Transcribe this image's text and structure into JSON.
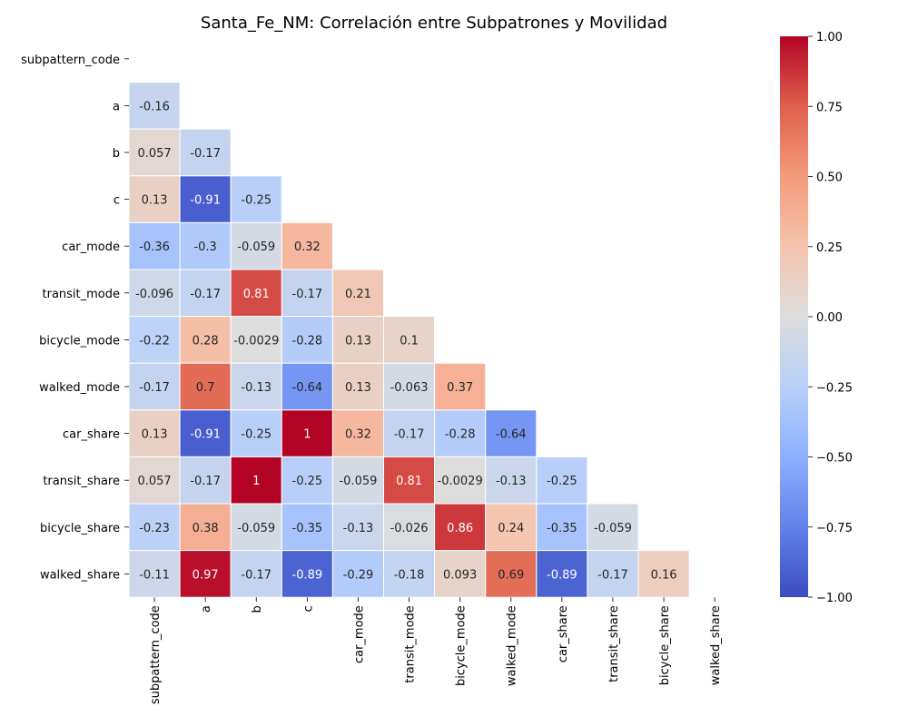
{
  "chart_data": {
    "type": "heatmap",
    "title": "Santa_Fe_NM: Correlación entre Subpatrones y Movilidad",
    "xlabel": "",
    "ylabel": "",
    "rows": [
      "subpattern_code",
      "a",
      "b",
      "c",
      "car_mode",
      "transit_mode",
      "bicycle_mode",
      "walked_mode",
      "car_share",
      "transit_share",
      "bicycle_share",
      "walked_share"
    ],
    "cols": [
      "subpattern_code",
      "a",
      "b",
      "c",
      "car_mode",
      "transit_mode",
      "bicycle_mode",
      "walked_mode",
      "car_share",
      "transit_share",
      "bicycle_share",
      "walked_share"
    ],
    "mask": "upper-triangle-including-diagonal",
    "values": [
      [],
      [
        -0.16
      ],
      [
        0.057,
        -0.17
      ],
      [
        0.13,
        -0.91,
        -0.25
      ],
      [
        -0.36,
        -0.3,
        -0.059,
        0.32
      ],
      [
        -0.096,
        -0.17,
        0.81,
        -0.17,
        0.21
      ],
      [
        -0.22,
        0.28,
        -0.0029,
        -0.28,
        0.13,
        0.1
      ],
      [
        -0.17,
        0.7,
        -0.13,
        -0.64,
        0.13,
        -0.063,
        0.37
      ],
      [
        0.13,
        -0.91,
        -0.25,
        1,
        0.32,
        -0.17,
        -0.28,
        -0.64
      ],
      [
        0.057,
        -0.17,
        1,
        -0.25,
        -0.059,
        0.81,
        -0.0029,
        -0.13,
        -0.25
      ],
      [
        -0.23,
        0.38,
        -0.059,
        -0.35,
        -0.13,
        -0.026,
        0.86,
        0.24,
        -0.35,
        -0.059
      ],
      [
        -0.11,
        0.97,
        -0.17,
        -0.89,
        -0.29,
        -0.18,
        0.093,
        0.69,
        -0.89,
        -0.17,
        0.16
      ]
    ],
    "colormap": "coolwarm",
    "vmin": -1,
    "vmax": 1,
    "colorbar_ticks": [
      "1.00",
      "0.75",
      "0.50",
      "0.25",
      "0.00",
      "−0.25",
      "−0.50",
      "−0.75",
      "−1.00"
    ],
    "annotated": true,
    "grid": false
  }
}
